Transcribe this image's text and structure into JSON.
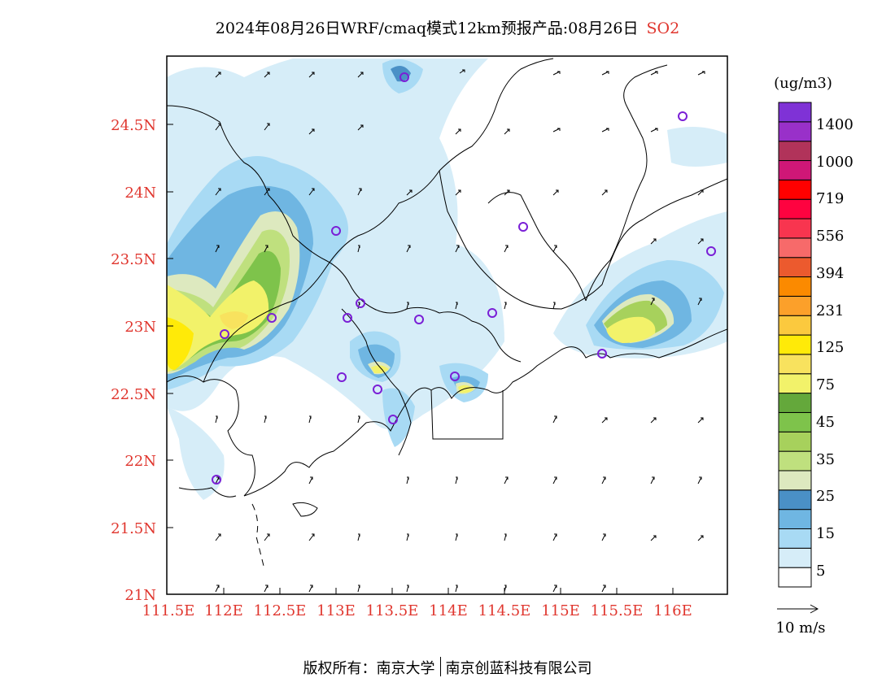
{
  "title": {
    "main": "2024年08月26日WRF/cmaq模式12km预报产品:08月26日",
    "pollutant": "SO2",
    "pollutant_color": "#e0362e"
  },
  "axes": {
    "lat_labels": [
      "24.5N",
      "24N",
      "23.5N",
      "23N",
      "22.5N",
      "22N",
      "21.5N",
      "21N"
    ],
    "lon_labels": [
      "111.5E",
      "112E",
      "112.5E",
      "113E",
      "113.5E",
      "114E",
      "114.5E",
      "115E",
      "115.5E",
      "116E"
    ],
    "label_color": "#e0362e"
  },
  "legend": {
    "unit": "(ug/m3)",
    "levels": [
      "1400",
      "1000",
      "719",
      "556",
      "394",
      "231",
      "125",
      "75",
      "45",
      "35",
      "25",
      "15",
      "5"
    ],
    "colors": [
      "#ffffff",
      "#d6edf8",
      "#a8daf4",
      "#6fb6e2",
      "#4a90c6",
      "#dde9bf",
      "#bfe07e",
      "#a7d15c",
      "#7ec34b",
      "#64a83b",
      "#f2f26a",
      "#f8e25e",
      "#ffea08",
      "#fbc93e",
      "#fca02a",
      "#fb8a00",
      "#ec5a2e",
      "#f76a6a",
      "#f8354f",
      "#fe0340",
      "#ff0000",
      "#cf1777",
      "#b1335a",
      "#9930c9",
      "#7f32d6"
    ],
    "wind_label": "10 m/s"
  },
  "stations_label": "monitoring-station",
  "footer": {
    "left": "版权所有：南京大学",
    "right": "南京创蓝科技有限公司"
  }
}
